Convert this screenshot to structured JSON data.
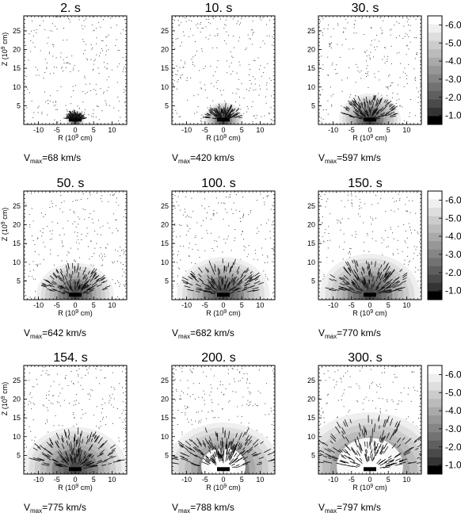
{
  "chart_data": {
    "type": "heatmap",
    "description_free": true,
    "xlabel": "R (10",
    "xlabel_exp": "9",
    "xlabel_unit": " cm)",
    "ylabel": "Z (10",
    "ylabel_exp": "9",
    "ylabel_unit": " cm)",
    "xlim": [
      -14,
      14
    ],
    "ylim": [
      0,
      29
    ],
    "xticks": [
      "-10",
      "-5",
      "0",
      "5",
      "10"
    ],
    "xtick_values": [
      -10,
      -5,
      0,
      5,
      10
    ],
    "yticks": [
      "5",
      "10",
      "15",
      "20",
      "25"
    ],
    "ytick_values": [
      5,
      10,
      15,
      20,
      25
    ],
    "vmax_prefix": "V",
    "vmax_sub": "max",
    "colorbar": {
      "ticks": [
        "-6.0",
        "-5.0",
        "-4.0",
        "-3.0",
        "-2.0",
        "-1.0"
      ],
      "tick_values": [
        -6,
        -5,
        -4,
        -3,
        -2,
        -1
      ],
      "range": [
        -6.5,
        -0.5
      ],
      "colors_light_to_dark": [
        "#ffffff",
        "#efefef",
        "#dedede",
        "#cccccc",
        "#bbbbbb",
        "#a9a9a9",
        "#979797",
        "#858585",
        "#727272",
        "#5f5f5f",
        "#4a4a4a",
        "#343434",
        "#000000"
      ]
    },
    "panels": [
      {
        "title": "2. s",
        "vmax": "=68 km/s",
        "radius": 2.4,
        "hole": 0,
        "arrows": 0.3
      },
      {
        "title": "10. s",
        "vmax": "=420 km/s",
        "radius": 5.0,
        "hole": 0,
        "arrows": 0.6
      },
      {
        "title": "30. s",
        "vmax": "=597 km/s",
        "radius": 8.0,
        "hole": 0,
        "arrows": 0.8
      },
      {
        "title": "50. s",
        "vmax": "=642 km/s",
        "radius": 10.0,
        "hole": 0,
        "arrows": 0.9
      },
      {
        "title": "100. s",
        "vmax": "=682 km/s",
        "radius": 12.0,
        "hole": 0,
        "arrows": 1.0
      },
      {
        "title": "150. s",
        "vmax": "=770 km/s",
        "radius": 13.0,
        "hole": 0,
        "arrows": 1.1
      },
      {
        "title": "154. s",
        "vmax": "=775 km/s",
        "radius": 13.5,
        "hole": 0,
        "arrows": 1.2
      },
      {
        "title": "200. s",
        "vmax": "=788 km/s",
        "radius": 15.0,
        "hole": 6.0,
        "arrows": 1.3
      },
      {
        "title": "300. s",
        "vmax": "=797 km/s",
        "radius": 18.5,
        "hole": 9.0,
        "arrows": 1.4
      }
    ]
  }
}
